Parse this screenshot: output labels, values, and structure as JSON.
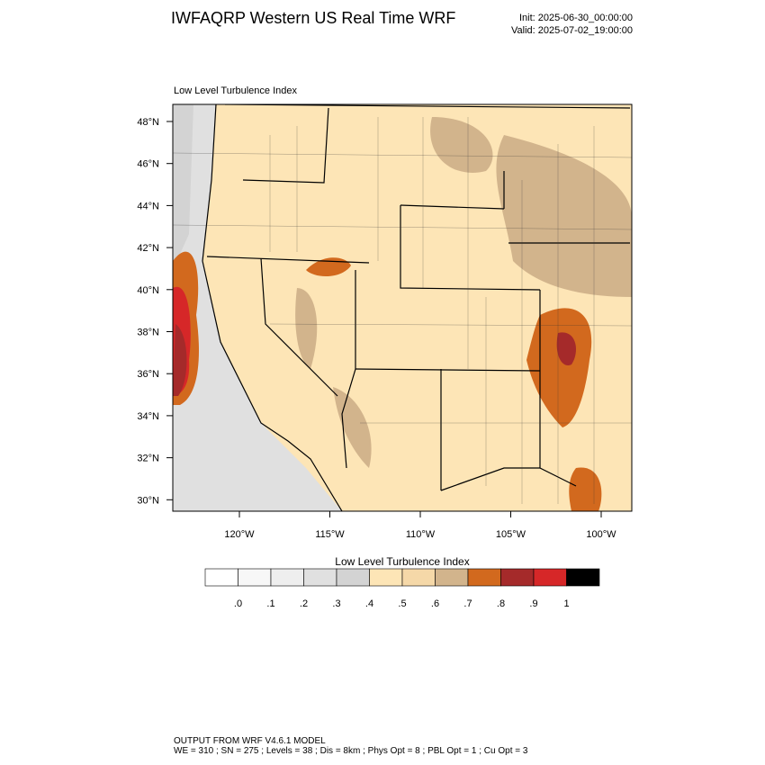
{
  "header": {
    "title": "IWFAQRP Western US Real Time WRF",
    "init": "Init: 2025-06-30_00:00:00",
    "valid": "Valid: 2025-07-02_19:00:00"
  },
  "map": {
    "subtitle": "Low Level Turbulence Index",
    "lat_labels": [
      "48°N",
      "46°N",
      "44°N",
      "42°N",
      "40°N",
      "38°N",
      "36°N",
      "34°N",
      "32°N",
      "30°N"
    ],
    "lon_labels": [
      "120°W",
      "115°W",
      "110°W",
      "105°W",
      "100°W"
    ]
  },
  "colorbar": {
    "title": "Low Level Turbulence Index",
    "labels": [
      ".0",
      ".1",
      ".2",
      ".3",
      ".4",
      ".5",
      ".6",
      ".7",
      ".8",
      ".9",
      "1"
    ],
    "colors": [
      "#ffffff",
      "#f7f7f7",
      "#eeeeee",
      "#e0e0e0",
      "#d3d3d3",
      "#fde5b6",
      "#f5d8a8",
      "#d2b48c",
      "#d2691e",
      "#a52a2a",
      "#d62728",
      "#000000"
    ]
  },
  "footer": {
    "line1": "OUTPUT FROM WRF V4.6.1 MODEL",
    "line2": "WE = 310 ; SN = 275 ; Levels = 38 ; Dis = 8km ; Phys Opt = 8 ; PBL Opt = 1 ; Cu Opt = 3"
  }
}
